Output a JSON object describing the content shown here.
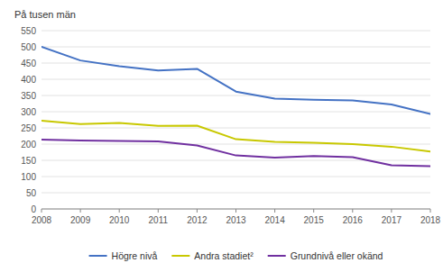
{
  "chart_data": {
    "type": "line",
    "ylabel": "På tusen män",
    "x": [
      2008,
      2009,
      2010,
      2011,
      2012,
      2013,
      2014,
      2015,
      2016,
      2017,
      2018
    ],
    "series": [
      {
        "name": "Högre nivå",
        "color": "#4472C4",
        "values": [
          500,
          458,
          440,
          427,
          432,
          362,
          340,
          337,
          335,
          322,
          293
        ]
      },
      {
        "name": "Andra stadiet²",
        "color": "#C8C800",
        "values": [
          272,
          262,
          265,
          256,
          257,
          215,
          207,
          204,
          200,
          192,
          177
        ]
      },
      {
        "name": "Grundnivå eller okänd",
        "color": "#7030A0",
        "values": [
          214,
          211,
          210,
          208,
          196,
          165,
          158,
          163,
          160,
          135,
          132
        ]
      }
    ],
    "xlim": [
      2008,
      2018
    ],
    "xticks": [
      2008,
      2009,
      2010,
      2011,
      2012,
      2013,
      2014,
      2015,
      2016,
      2017,
      2018
    ],
    "ylim": [
      0,
      550
    ],
    "yticks": [
      0,
      50,
      100,
      150,
      200,
      250,
      300,
      350,
      400,
      450,
      500,
      550
    ],
    "grid": true,
    "legend": "bottom"
  }
}
